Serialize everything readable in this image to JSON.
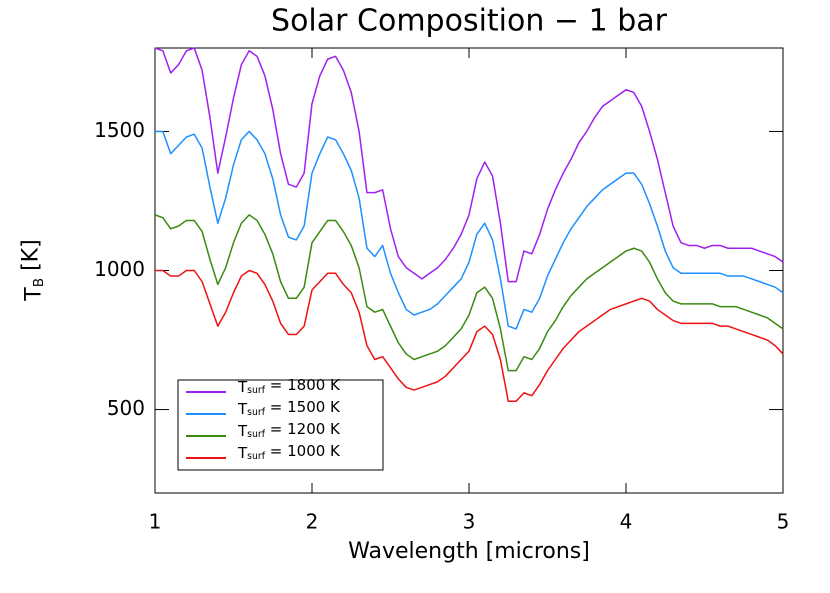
{
  "chart_data": {
    "type": "line",
    "title": "Solar Composition − 1 bar",
    "x_label": "Wavelength [microns]",
    "y_label": "TB [K]",
    "x": [
      1.0,
      1.05,
      1.1,
      1.15,
      1.2,
      1.25,
      1.3,
      1.35,
      1.4,
      1.45,
      1.5,
      1.55,
      1.6,
      1.65,
      1.7,
      1.75,
      1.8,
      1.85,
      1.9,
      1.95,
      2.0,
      2.05,
      2.1,
      2.15,
      2.2,
      2.25,
      2.3,
      2.35,
      2.4,
      2.45,
      2.5,
      2.55,
      2.6,
      2.65,
      2.7,
      2.75,
      2.8,
      2.85,
      2.9,
      2.95,
      3.0,
      3.05,
      3.1,
      3.15,
      3.2,
      3.25,
      3.3,
      3.35,
      3.4,
      3.45,
      3.5,
      3.55,
      3.6,
      3.65,
      3.7,
      3.75,
      3.8,
      3.85,
      3.9,
      3.95,
      4.0,
      4.05,
      4.1,
      4.15,
      4.2,
      4.25,
      4.3,
      4.35,
      4.4,
      4.45,
      4.5,
      4.55,
      4.6,
      4.65,
      4.7,
      4.75,
      4.8,
      4.85,
      4.9,
      4.95,
      5.0
    ],
    "series": [
      {
        "name": "Tsurf = 1800 K",
        "color": "#a020f0",
        "values": [
          1800,
          1790,
          1710,
          1740,
          1790,
          1800,
          1720,
          1550,
          1350,
          1480,
          1620,
          1740,
          1790,
          1770,
          1700,
          1580,
          1420,
          1310,
          1300,
          1350,
          1600,
          1700,
          1760,
          1770,
          1720,
          1640,
          1500,
          1280,
          1280,
          1290,
          1150,
          1050,
          1010,
          990,
          970,
          990,
          1010,
          1040,
          1080,
          1130,
          1200,
          1330,
          1390,
          1340,
          1170,
          960,
          960,
          1070,
          1060,
          1130,
          1220,
          1290,
          1350,
          1400,
          1460,
          1500,
          1550,
          1590,
          1610,
          1630,
          1650,
          1640,
          1590,
          1500,
          1400,
          1280,
          1160,
          1100,
          1090,
          1090,
          1080,
          1090,
          1090,
          1080,
          1080,
          1080,
          1080,
          1070,
          1060,
          1050,
          1030
        ]
      },
      {
        "name": "Tsurf = 1500 K",
        "color": "#1e90ff",
        "values": [
          1500,
          1500,
          1420,
          1450,
          1480,
          1490,
          1440,
          1300,
          1170,
          1260,
          1380,
          1470,
          1500,
          1470,
          1420,
          1330,
          1200,
          1120,
          1110,
          1160,
          1350,
          1420,
          1480,
          1470,
          1420,
          1360,
          1260,
          1080,
          1050,
          1090,
          990,
          920,
          860,
          840,
          850,
          860,
          880,
          910,
          940,
          970,
          1030,
          1130,
          1170,
          1110,
          970,
          800,
          790,
          860,
          850,
          900,
          980,
          1040,
          1100,
          1150,
          1190,
          1230,
          1260,
          1290,
          1310,
          1330,
          1350,
          1350,
          1310,
          1240,
          1160,
          1070,
          1010,
          990,
          990,
          990,
          990,
          990,
          990,
          980,
          980,
          980,
          970,
          960,
          950,
          940,
          920
        ]
      },
      {
        "name": "Tsurf = 1200 K",
        "color": "#3a8a10",
        "values": [
          1200,
          1190,
          1150,
          1160,
          1180,
          1180,
          1140,
          1040,
          950,
          1010,
          1100,
          1170,
          1200,
          1180,
          1130,
          1060,
          960,
          900,
          900,
          940,
          1100,
          1140,
          1180,
          1180,
          1140,
          1090,
          1010,
          870,
          850,
          860,
          800,
          740,
          700,
          680,
          690,
          700,
          710,
          730,
          760,
          790,
          840,
          920,
          940,
          900,
          790,
          640,
          640,
          690,
          680,
          720,
          780,
          820,
          870,
          910,
          940,
          970,
          990,
          1010,
          1030,
          1050,
          1070,
          1080,
          1070,
          1030,
          970,
          920,
          890,
          880,
          880,
          880,
          880,
          880,
          870,
          870,
          870,
          860,
          850,
          840,
          830,
          810,
          790
        ]
      },
      {
        "name": "Tsurf = 1000 K",
        "color": "#ee1111",
        "values": [
          1000,
          1000,
          980,
          980,
          1000,
          1000,
          960,
          880,
          800,
          850,
          920,
          980,
          1000,
          990,
          950,
          890,
          810,
          770,
          770,
          800,
          930,
          960,
          990,
          990,
          950,
          920,
          850,
          730,
          680,
          690,
          650,
          610,
          580,
          570,
          580,
          590,
          600,
          620,
          650,
          680,
          710,
          780,
          800,
          770,
          680,
          530,
          530,
          560,
          550,
          590,
          640,
          680,
          720,
          750,
          780,
          800,
          820,
          840,
          860,
          870,
          880,
          890,
          900,
          890,
          860,
          840,
          820,
          810,
          810,
          810,
          810,
          810,
          800,
          800,
          790,
          780,
          770,
          760,
          750,
          730,
          700
        ]
      }
    ],
    "xlim": [
      1,
      5
    ],
    "xticks": [
      1,
      2,
      3,
      4,
      5
    ],
    "ylim": [
      200,
      1800
    ],
    "yticks": [
      500,
      1000,
      1500
    ],
    "legend": "lower left"
  }
}
